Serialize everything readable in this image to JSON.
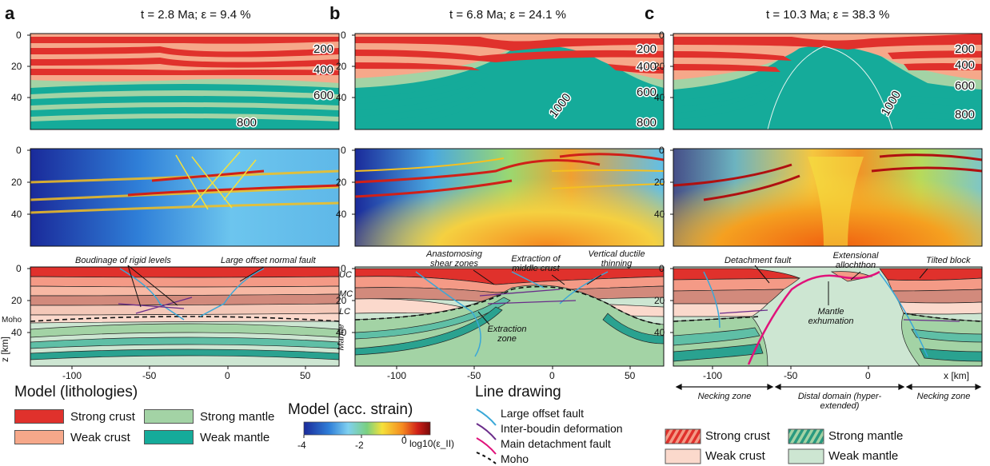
{
  "panels": [
    {
      "letter": "a",
      "title": "t = 2.8 Ma; ε = 9.4 %",
      "isotherms": [
        "200",
        "400",
        "600",
        "800"
      ]
    },
    {
      "letter": "b",
      "title": "t = 6.8 Ma; ε = 24.1 %",
      "isotherms": [
        "200",
        "400",
        "600",
        "800",
        "1000"
      ]
    },
    {
      "letter": "c",
      "title": "t = 10.3 Ma; ε = 38.3 %",
      "isotherms": [
        "200",
        "400",
        "600",
        "800",
        "1000"
      ]
    }
  ],
  "axes": {
    "y_ticks": [
      "0",
      "20",
      "40"
    ],
    "x_ticks_a": [
      "-100",
      "-50",
      "0",
      "50"
    ],
    "x_ticks_b": [
      "-100",
      "-50",
      "0",
      "50"
    ],
    "x_ticks_c": [
      "-100",
      "-50",
      "0"
    ],
    "y_label": "z [km]",
    "x_label": "x [km]"
  },
  "side_labels": {
    "uc": "UC",
    "mc": "MC",
    "lc": "LC",
    "moho": "Moho",
    "mantle": "Mantle"
  },
  "annotations": {
    "a_boudinage": "Boudinage of rigid levels",
    "a_normal_fault": "Large offset normal fault",
    "b_anastomosing": "Anastomosing shear zones",
    "b_extraction_middle": "Extraction of middle crust",
    "b_vertical": "Vertical ductile thinning",
    "b_extraction_zone": "Extraction zone",
    "c_detachment": "Detachment fault",
    "c_allochthon": "Extensional allochthon",
    "c_tilted": "Tilted block",
    "c_exhumation": "Mantle exhumation"
  },
  "domains": [
    {
      "label": "Necking zone"
    },
    {
      "label": "Distal domain (hyper-extended)"
    },
    {
      "label": "Necking zone"
    }
  ],
  "legend_lithologies": {
    "title": "Model (lithologies)",
    "items": [
      {
        "label": "Strong crust",
        "color": "#e0312c"
      },
      {
        "label": "Strong mantle",
        "color": "#a3d3a5"
      },
      {
        "label": "Weak crust",
        "color": "#f6a88a"
      },
      {
        "label": "Weak mantle",
        "color": "#15ab9a"
      }
    ]
  },
  "legend_strain": {
    "title": "Model (acc. strain)",
    "ticks": [
      "-4",
      "-2",
      "0"
    ],
    "unit": "log10(ε_II)",
    "colors": [
      "#1a2a9a",
      "#2f7fd8",
      "#7fd0f0",
      "#7ad080",
      "#f5e13a",
      "#f58a20",
      "#d02018",
      "#7a0a0a"
    ]
  },
  "legend_lines": {
    "title": "Line drawing",
    "items": [
      {
        "label": "Large offset fault",
        "color": "#3aa8d8",
        "dash": false
      },
      {
        "label": "Inter-boudin deformation",
        "color": "#6a2c8a",
        "dash": false
      },
      {
        "label": "Main detachment fault",
        "color": "#e0127a",
        "dash": false
      },
      {
        "label": "Moho",
        "color": "#111111",
        "dash": true
      }
    ]
  },
  "legend_drawing": {
    "items": [
      {
        "label": "Strong crust"
      },
      {
        "label": "Strong mantle"
      },
      {
        "label": "Weak crust"
      },
      {
        "label": "Weak mantle"
      }
    ]
  }
}
